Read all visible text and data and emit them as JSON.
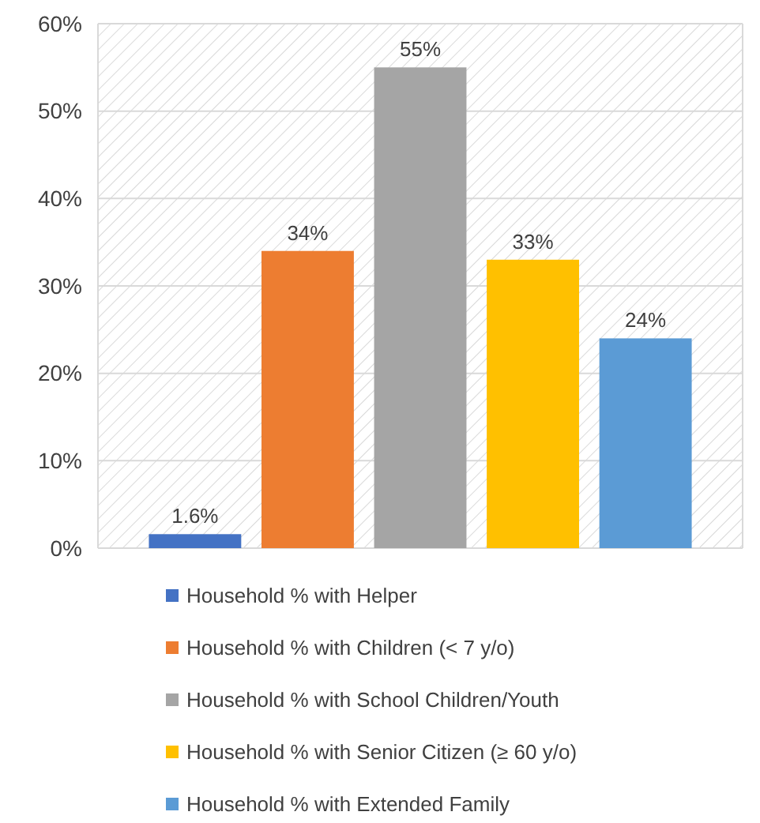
{
  "chart_data": {
    "type": "bar",
    "categories": [
      null
    ],
    "series": [
      {
        "name": "Household % with Helper",
        "color": "#4472c4",
        "values": [
          1.6
        ],
        "value_labels": [
          "1.6%"
        ]
      },
      {
        "name": "Household % with Children (< 7 y/o)",
        "color": "#ed7d31",
        "values": [
          34
        ],
        "value_labels": [
          "34%"
        ]
      },
      {
        "name": "Household % with School Children/Youth",
        "color": "#a5a5a5",
        "values": [
          55
        ],
        "value_labels": [
          "55%"
        ]
      },
      {
        "name": "Household % with Senior Citizen (≥ 60 y/o)",
        "color": "#ffc000",
        "values": [
          33
        ],
        "value_labels": [
          "33%"
        ]
      },
      {
        "name": "Household % with Extended Family",
        "color": "#5b9bd5",
        "values": [
          24
        ],
        "value_labels": [
          "24%"
        ]
      }
    ],
    "ylim": [
      0,
      60
    ],
    "yticks": [
      {
        "value": 0,
        "label": "0%"
      },
      {
        "value": 10,
        "label": "10%"
      },
      {
        "value": 20,
        "label": "20%"
      },
      {
        "value": 30,
        "label": "30%"
      },
      {
        "value": 40,
        "label": "40%"
      },
      {
        "value": 50,
        "label": "50%"
      },
      {
        "value": 60,
        "label": "60%"
      }
    ],
    "grid": "y",
    "legend": "bottom"
  }
}
